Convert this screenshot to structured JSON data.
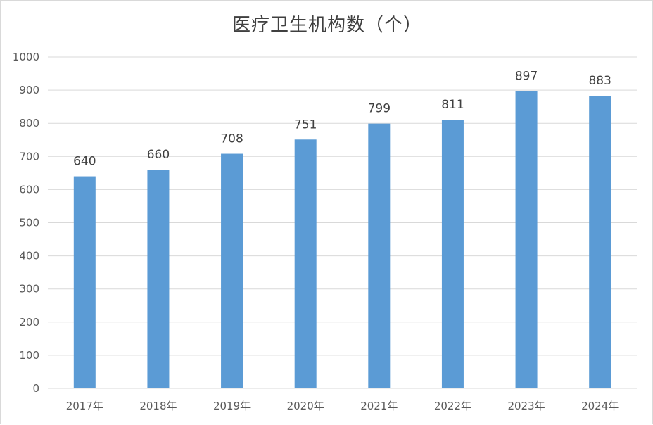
{
  "chart_data": {
    "type": "bar",
    "title": "医疗卫生机构数（个）",
    "xlabel": "",
    "ylabel": "",
    "categories": [
      "2017年",
      "2018年",
      "2019年",
      "2020年",
      "2021年",
      "2022年",
      "2023年",
      "2024年"
    ],
    "values": [
      640,
      660,
      708,
      751,
      799,
      811,
      897,
      883
    ],
    "ylim": [
      0,
      1000
    ],
    "yticks": [
      0,
      100,
      200,
      300,
      400,
      500,
      600,
      700,
      800,
      900,
      1000
    ],
    "grid": true,
    "legend": "none",
    "bar_color": "#5b9bd5",
    "grid_color": "#d9d9d9"
  }
}
